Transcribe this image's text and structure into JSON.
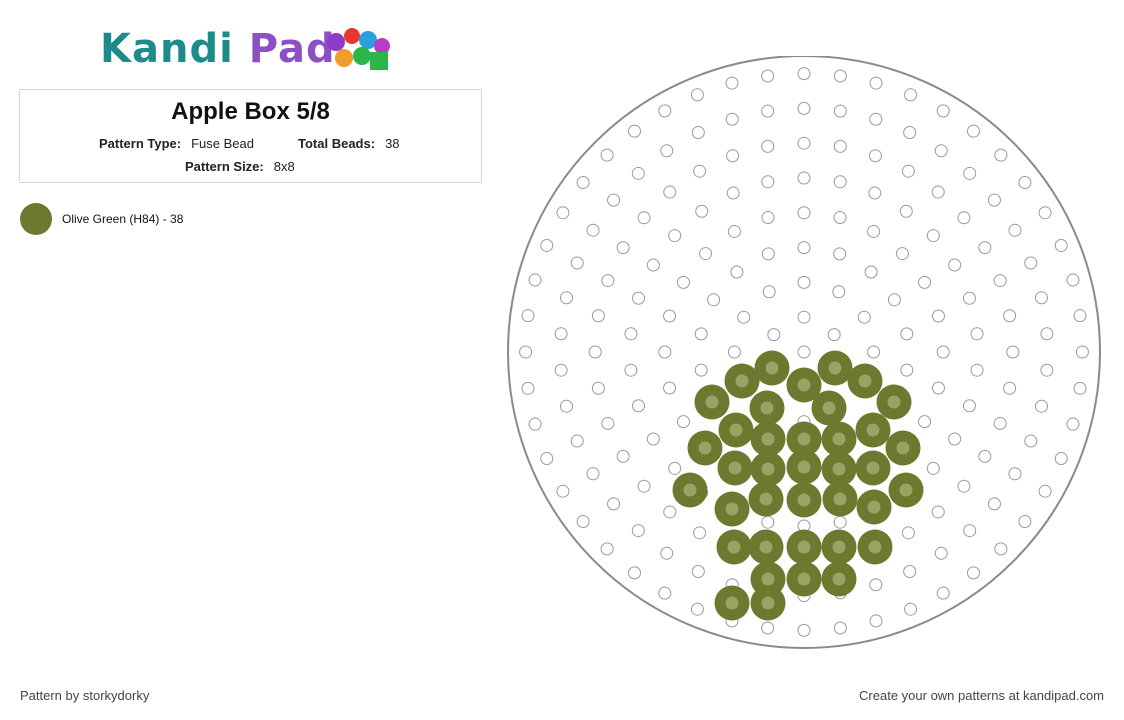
{
  "brand": {
    "name_part1": "Kandi",
    "name_part2": " Pad",
    "bead_colors": [
      "#8d3cc9",
      "#e8362f",
      "#2aa0e0",
      "#f29c2b",
      "#2cb548",
      "#b93cc9"
    ]
  },
  "pattern": {
    "title": "Apple Box 5/8",
    "type_label": "Pattern Type:",
    "type_value": "Fuse Bead",
    "total_label": "Total Beads:",
    "total_value": "38",
    "size_label": "Pattern Size:",
    "size_value": "8x8"
  },
  "legend": [
    {
      "label": "Olive Green (H84) - 38",
      "color": "#6b7a2f"
    }
  ],
  "pegboard": {
    "empty_peg_color": "#9a9a9a",
    "bead_color": "#6b7a2f",
    "bead_hole_color": "#9ba264"
  },
  "footer": {
    "author": "Pattern by storkydorky",
    "cta": "Create your own patterns at kandipad.com"
  }
}
